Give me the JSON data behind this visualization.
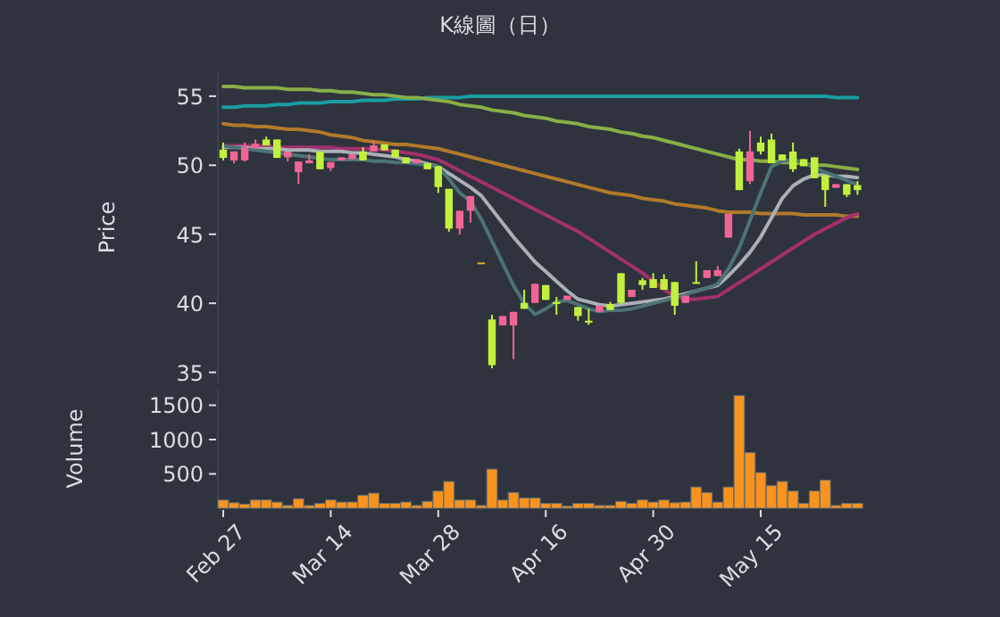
{
  "chart_data": [
    {
      "type": "candlestick",
      "title": "K線圖（日）",
      "ylabel": "Price",
      "categories": [
        null,
        null,
        null,
        null,
        null,
        null,
        null,
        null,
        null,
        null,
        null,
        null,
        null,
        null,
        null,
        null,
        null,
        null,
        null,
        null,
        null,
        null,
        null,
        null,
        null,
        null,
        null,
        null,
        null,
        null,
        null,
        null,
        null,
        null,
        null,
        null,
        null,
        null,
        null,
        null,
        null,
        null,
        null,
        null,
        null,
        null,
        null,
        null,
        null,
        null,
        null,
        null,
        null,
        null,
        null,
        null,
        null,
        null,
        null,
        null
      ],
      "ohlc": [
        [
          51.13,
          51.64,
          50.35,
          50.53
        ],
        [
          50.35,
          51.0,
          50.14,
          51.0
        ],
        [
          50.35,
          51.64,
          50.27,
          51.3
        ],
        [
          51.2,
          51.86,
          51.2,
          51.56
        ],
        [
          51.86,
          52.07,
          51.43,
          51.43
        ],
        [
          51.86,
          51.86,
          50.53,
          50.53
        ],
        [
          50.57,
          50.99,
          50.27,
          50.99
        ],
        [
          49.5,
          50.27,
          48.63,
          50.27
        ],
        [
          50.14,
          50.78,
          50.14,
          50.35
        ],
        [
          50.99,
          50.99,
          49.71,
          49.71
        ],
        [
          49.8,
          50.23,
          49.58,
          50.23
        ],
        [
          50.35,
          50.57,
          50.35,
          50.57
        ],
        [
          50.44,
          50.78,
          50.44,
          50.78
        ],
        [
          50.99,
          51.3,
          50.35,
          50.35
        ],
        [
          50.99,
          51.73,
          50.99,
          51.43
        ],
        [
          51.51,
          51.51,
          51.08,
          51.08
        ],
        [
          51.13,
          51.13,
          50.57,
          50.57
        ],
        [
          50.57,
          50.57,
          50.14,
          50.14
        ],
        [
          50.14,
          50.44,
          50.14,
          50.44
        ],
        [
          50.14,
          50.14,
          49.71,
          49.71
        ],
        [
          49.93,
          49.93,
          47.99,
          48.42
        ],
        [
          48.29,
          48.29,
          45.19,
          45.41
        ],
        [
          45.41,
          46.7,
          44.98,
          46.7
        ],
        [
          46.7,
          47.77,
          45.84,
          47.77
        ],
        [
          42.96,
          42.96,
          42.96,
          42.96
        ],
        [
          38.83,
          39.17,
          35.3,
          35.52
        ],
        [
          38.4,
          39.08,
          38.4,
          39.08
        ],
        [
          38.4,
          39.38,
          35.95,
          39.38
        ],
        [
          40.03,
          40.98,
          39.6,
          39.6
        ],
        [
          40.03,
          41.41,
          40.03,
          41.41
        ],
        [
          41.32,
          41.32,
          40.25,
          40.25
        ],
        [
          40.1,
          40.46,
          39.17,
          39.95
        ],
        [
          40.25,
          40.55,
          40.25,
          40.55
        ],
        [
          39.73,
          39.73,
          38.74,
          39.08
        ],
        [
          38.74,
          39.6,
          38.44,
          38.6
        ],
        [
          39.38,
          39.82,
          39.38,
          39.82
        ],
        [
          39.95,
          40.1,
          39.52,
          39.52
        ],
        [
          42.18,
          42.18,
          39.95,
          40.03
        ],
        [
          40.46,
          40.98,
          40.46,
          40.98
        ],
        [
          41.67,
          41.84,
          40.98,
          41.32
        ],
        [
          41.75,
          42.18,
          41.11,
          41.11
        ],
        [
          41.75,
          42.1,
          40.98,
          40.98
        ],
        [
          41.54,
          41.54,
          39.17,
          39.82
        ],
        [
          40.03,
          40.55,
          40.03,
          40.55
        ],
        [
          41.54,
          43.04,
          41.41,
          41.45
        ],
        [
          41.84,
          42.4,
          41.84,
          42.4
        ],
        [
          41.97,
          42.7,
          41.97,
          42.4
        ],
        [
          44.76,
          46.48,
          44.76,
          46.48
        ],
        [
          51.0,
          51.2,
          48.2,
          48.2
        ],
        [
          48.85,
          52.5,
          48.63,
          51.0
        ],
        [
          51.64,
          52.07,
          50.78,
          51.0
        ],
        [
          51.86,
          52.3,
          50.14,
          50.14
        ],
        [
          50.78,
          50.78,
          50.35,
          50.35
        ],
        [
          50.99,
          51.64,
          49.5,
          49.71
        ],
        [
          50.44,
          50.44,
          49.93,
          49.93
        ],
        [
          50.57,
          50.57,
          49.06,
          49.06
        ],
        [
          49.28,
          49.28,
          46.99,
          48.2
        ],
        [
          48.37,
          48.63,
          48.37,
          48.63
        ],
        [
          48.63,
          48.63,
          47.69,
          47.86
        ],
        [
          48.55,
          48.85,
          47.86,
          48.2
        ]
      ],
      "colors": [
        "#c2f03e",
        "#f06496",
        "#f06496",
        "#f06496",
        "#c2f03e",
        "#c2f03e",
        "#f06496",
        "#f06496",
        "#f06496",
        "#c2f03e",
        "#f06496",
        "#f06496",
        "#f06496",
        "#c2f03e",
        "#f06496",
        "#c2f03e",
        "#c2f03e",
        "#c2f03e",
        "#f06496",
        "#c2f03e",
        "#c2f03e",
        "#c2f03e",
        "#f06496",
        "#f06496",
        "#e0b030",
        "#c2f03e",
        "#f06496",
        "#f06496",
        "#c2f03e",
        "#f06496",
        "#c2f03e",
        "#c2f03e",
        "#f06496",
        "#c2f03e",
        "#c2f03e",
        "#f06496",
        "#c2f03e",
        "#c2f03e",
        "#f06496",
        "#c2f03e",
        "#c2f03e",
        "#c2f03e",
        "#c2f03e",
        "#f06496",
        "#c2f03e",
        "#f06496",
        "#f06496",
        "#f06496",
        "#c2f03e",
        "#f06496",
        "#c2f03e",
        "#c2f03e",
        "#c2f03e",
        "#c2f03e",
        "#c2f03e",
        "#c2f03e",
        "#c2f03e",
        "#f06496",
        "#c2f03e",
        "#c2f03e"
      ],
      "series": [
        {
          "type": "line",
          "color": "#1a9ea3",
          "values": [
            54.2,
            54.2,
            54.3,
            54.3,
            54.3,
            54.4,
            54.4,
            54.5,
            54.5,
            54.5,
            54.6,
            54.6,
            54.6,
            54.7,
            54.7,
            54.7,
            54.8,
            54.8,
            54.8,
            54.9,
            54.9,
            54.9,
            54.9,
            55.0,
            55.0,
            55.0,
            55.0,
            55.0,
            55.0,
            55.0,
            55.0,
            55.0,
            55.0,
            55.0,
            55.0,
            55.0,
            55.0,
            55.0,
            55.0,
            55.0,
            55.0,
            55.0,
            55.0,
            55.0,
            55.0,
            55.0,
            55.0,
            55.0,
            55.0,
            55.0,
            55.0,
            55.0,
            55.0,
            55.0,
            55.0,
            55.0,
            55.0,
            54.9,
            54.9,
            54.9
          ]
        },
        {
          "type": "line",
          "color": "#8aae48",
          "values": [
            55.7,
            55.7,
            55.6,
            55.6,
            55.6,
            55.6,
            55.5,
            55.5,
            55.5,
            55.4,
            55.4,
            55.3,
            55.3,
            55.2,
            55.1,
            55.1,
            55.0,
            54.9,
            54.9,
            54.8,
            54.7,
            54.6,
            54.4,
            54.3,
            54.2,
            54.0,
            53.9,
            53.8,
            53.6,
            53.5,
            53.4,
            53.2,
            53.1,
            53.0,
            52.8,
            52.7,
            52.6,
            52.4,
            52.3,
            52.1,
            52.0,
            51.8,
            51.6,
            51.4,
            51.2,
            51.0,
            50.8,
            50.6,
            50.4,
            50.4,
            50.3,
            50.3,
            50.2,
            50.2,
            50.1,
            50.0,
            50.0,
            49.9,
            49.8,
            49.7
          ]
        },
        {
          "type": "line",
          "color": "#b07a2a",
          "values": [
            53.0,
            52.9,
            52.9,
            52.8,
            52.8,
            52.7,
            52.6,
            52.6,
            52.5,
            52.4,
            52.2,
            52.1,
            52.0,
            51.8,
            51.7,
            51.6,
            51.5,
            51.5,
            51.4,
            51.3,
            51.2,
            51.0,
            50.8,
            50.6,
            50.4,
            50.2,
            50.0,
            49.8,
            49.6,
            49.4,
            49.2,
            49.0,
            48.8,
            48.6,
            48.4,
            48.2,
            48.0,
            47.9,
            47.8,
            47.6,
            47.5,
            47.4,
            47.2,
            47.1,
            47.0,
            46.9,
            46.7,
            46.6,
            46.6,
            46.6,
            46.5,
            46.5,
            46.5,
            46.5,
            46.4,
            46.4,
            46.4,
            46.4,
            46.3,
            46.3
          ]
        },
        {
          "type": "line",
          "color": "#a3306c",
          "values": [
            51.4,
            51.4,
            51.4,
            51.4,
            51.4,
            51.3,
            51.3,
            51.3,
            51.3,
            51.3,
            51.3,
            51.2,
            51.2,
            51.2,
            51.2,
            51.1,
            51.0,
            50.9,
            50.8,
            50.6,
            50.4,
            50.0,
            49.6,
            49.2,
            48.8,
            48.4,
            48.0,
            47.6,
            47.2,
            46.8,
            46.4,
            46.0,
            45.6,
            45.2,
            44.7,
            44.2,
            43.7,
            43.2,
            42.7,
            42.2,
            41.6,
            41.0,
            40.5,
            40.3,
            40.3,
            40.4,
            40.5,
            41.0,
            41.5,
            42.0,
            42.5,
            43.0,
            43.5,
            44.0,
            44.5,
            45.0,
            45.4,
            45.8,
            46.2,
            46.5
          ]
        },
        {
          "type": "line",
          "color": "#aab0b6",
          "values": [
            51.3,
            51.3,
            51.3,
            51.2,
            51.2,
            51.2,
            51.1,
            51.1,
            51.1,
            51.0,
            51.0,
            51.0,
            50.9,
            50.9,
            50.8,
            50.7,
            50.6,
            50.4,
            50.3,
            50.1,
            49.9,
            49.4,
            48.9,
            48.4,
            47.8,
            46.8,
            45.8,
            44.8,
            43.9,
            43.0,
            42.3,
            41.6,
            40.9,
            40.3,
            40.1,
            39.9,
            39.8,
            39.9,
            40.0,
            40.1,
            40.2,
            40.3,
            40.5,
            40.7,
            40.9,
            41.1,
            41.3,
            42.0,
            42.8,
            43.7,
            44.8,
            46.2,
            47.6,
            48.5,
            49.0,
            49.3,
            49.3,
            49.2,
            49.2,
            49.1
          ]
        },
        {
          "type": "line",
          "color": "#4d7376",
          "values": [
            51.4,
            51.3,
            51.2,
            51.1,
            51.0,
            50.9,
            50.8,
            50.7,
            50.6,
            50.5,
            50.4,
            50.4,
            50.4,
            50.4,
            50.3,
            50.3,
            50.2,
            50.2,
            50.1,
            50.0,
            49.9,
            49.0,
            48.0,
            47.4,
            46.1,
            44.5,
            42.9,
            41.3,
            40.0,
            39.2,
            39.6,
            40.1,
            40.2,
            39.9,
            39.6,
            39.4,
            39.5,
            39.5,
            39.6,
            39.8,
            40.0,
            40.2,
            40.4,
            40.6,
            40.9,
            41.1,
            41.4,
            42.5,
            44.0,
            46.0,
            48.0,
            49.9,
            50.3,
            50.4,
            50.2,
            49.8,
            49.5,
            49.2,
            48.9,
            48.6
          ]
        }
      ],
      "ylim": [
        34.2,
        56.8
      ],
      "yticks": [
        35,
        40,
        45,
        50,
        55
      ],
      "tick_labels": "y",
      "grid": false
    },
    {
      "type": "bar",
      "ylabel": "Volume",
      "color": "#f7931e",
      "categories": [
        "Feb 27",
        null,
        null,
        null,
        null,
        null,
        null,
        null,
        null,
        null,
        "Mar 14",
        null,
        null,
        null,
        null,
        null,
        null,
        null,
        null,
        null,
        "Mar 28",
        null,
        null,
        null,
        null,
        null,
        null,
        null,
        null,
        null,
        "Apr 16",
        null,
        null,
        null,
        null,
        null,
        null,
        null,
        null,
        null,
        "Apr 30",
        null,
        null,
        null,
        null,
        null,
        null,
        null,
        null,
        null,
        "May 15",
        null,
        null,
        null,
        null,
        null,
        null,
        null,
        null,
        null
      ],
      "values": [
        120,
        80,
        60,
        120,
        120,
        90,
        40,
        140,
        40,
        70,
        120,
        90,
        90,
        190,
        220,
        70,
        70,
        90,
        40,
        100,
        250,
        390,
        120,
        120,
        40,
        570,
        120,
        230,
        150,
        150,
        70,
        70,
        30,
        70,
        70,
        40,
        40,
        100,
        70,
        120,
        90,
        120,
        80,
        90,
        310,
        230,
        90,
        310,
        1640,
        810,
        520,
        330,
        390,
        250,
        70,
        250,
        410,
        40,
        70,
        70
      ],
      "ylim": [
        0,
        1740
      ],
      "yticks": [
        500,
        1000,
        1500
      ],
      "grid": false
    }
  ]
}
